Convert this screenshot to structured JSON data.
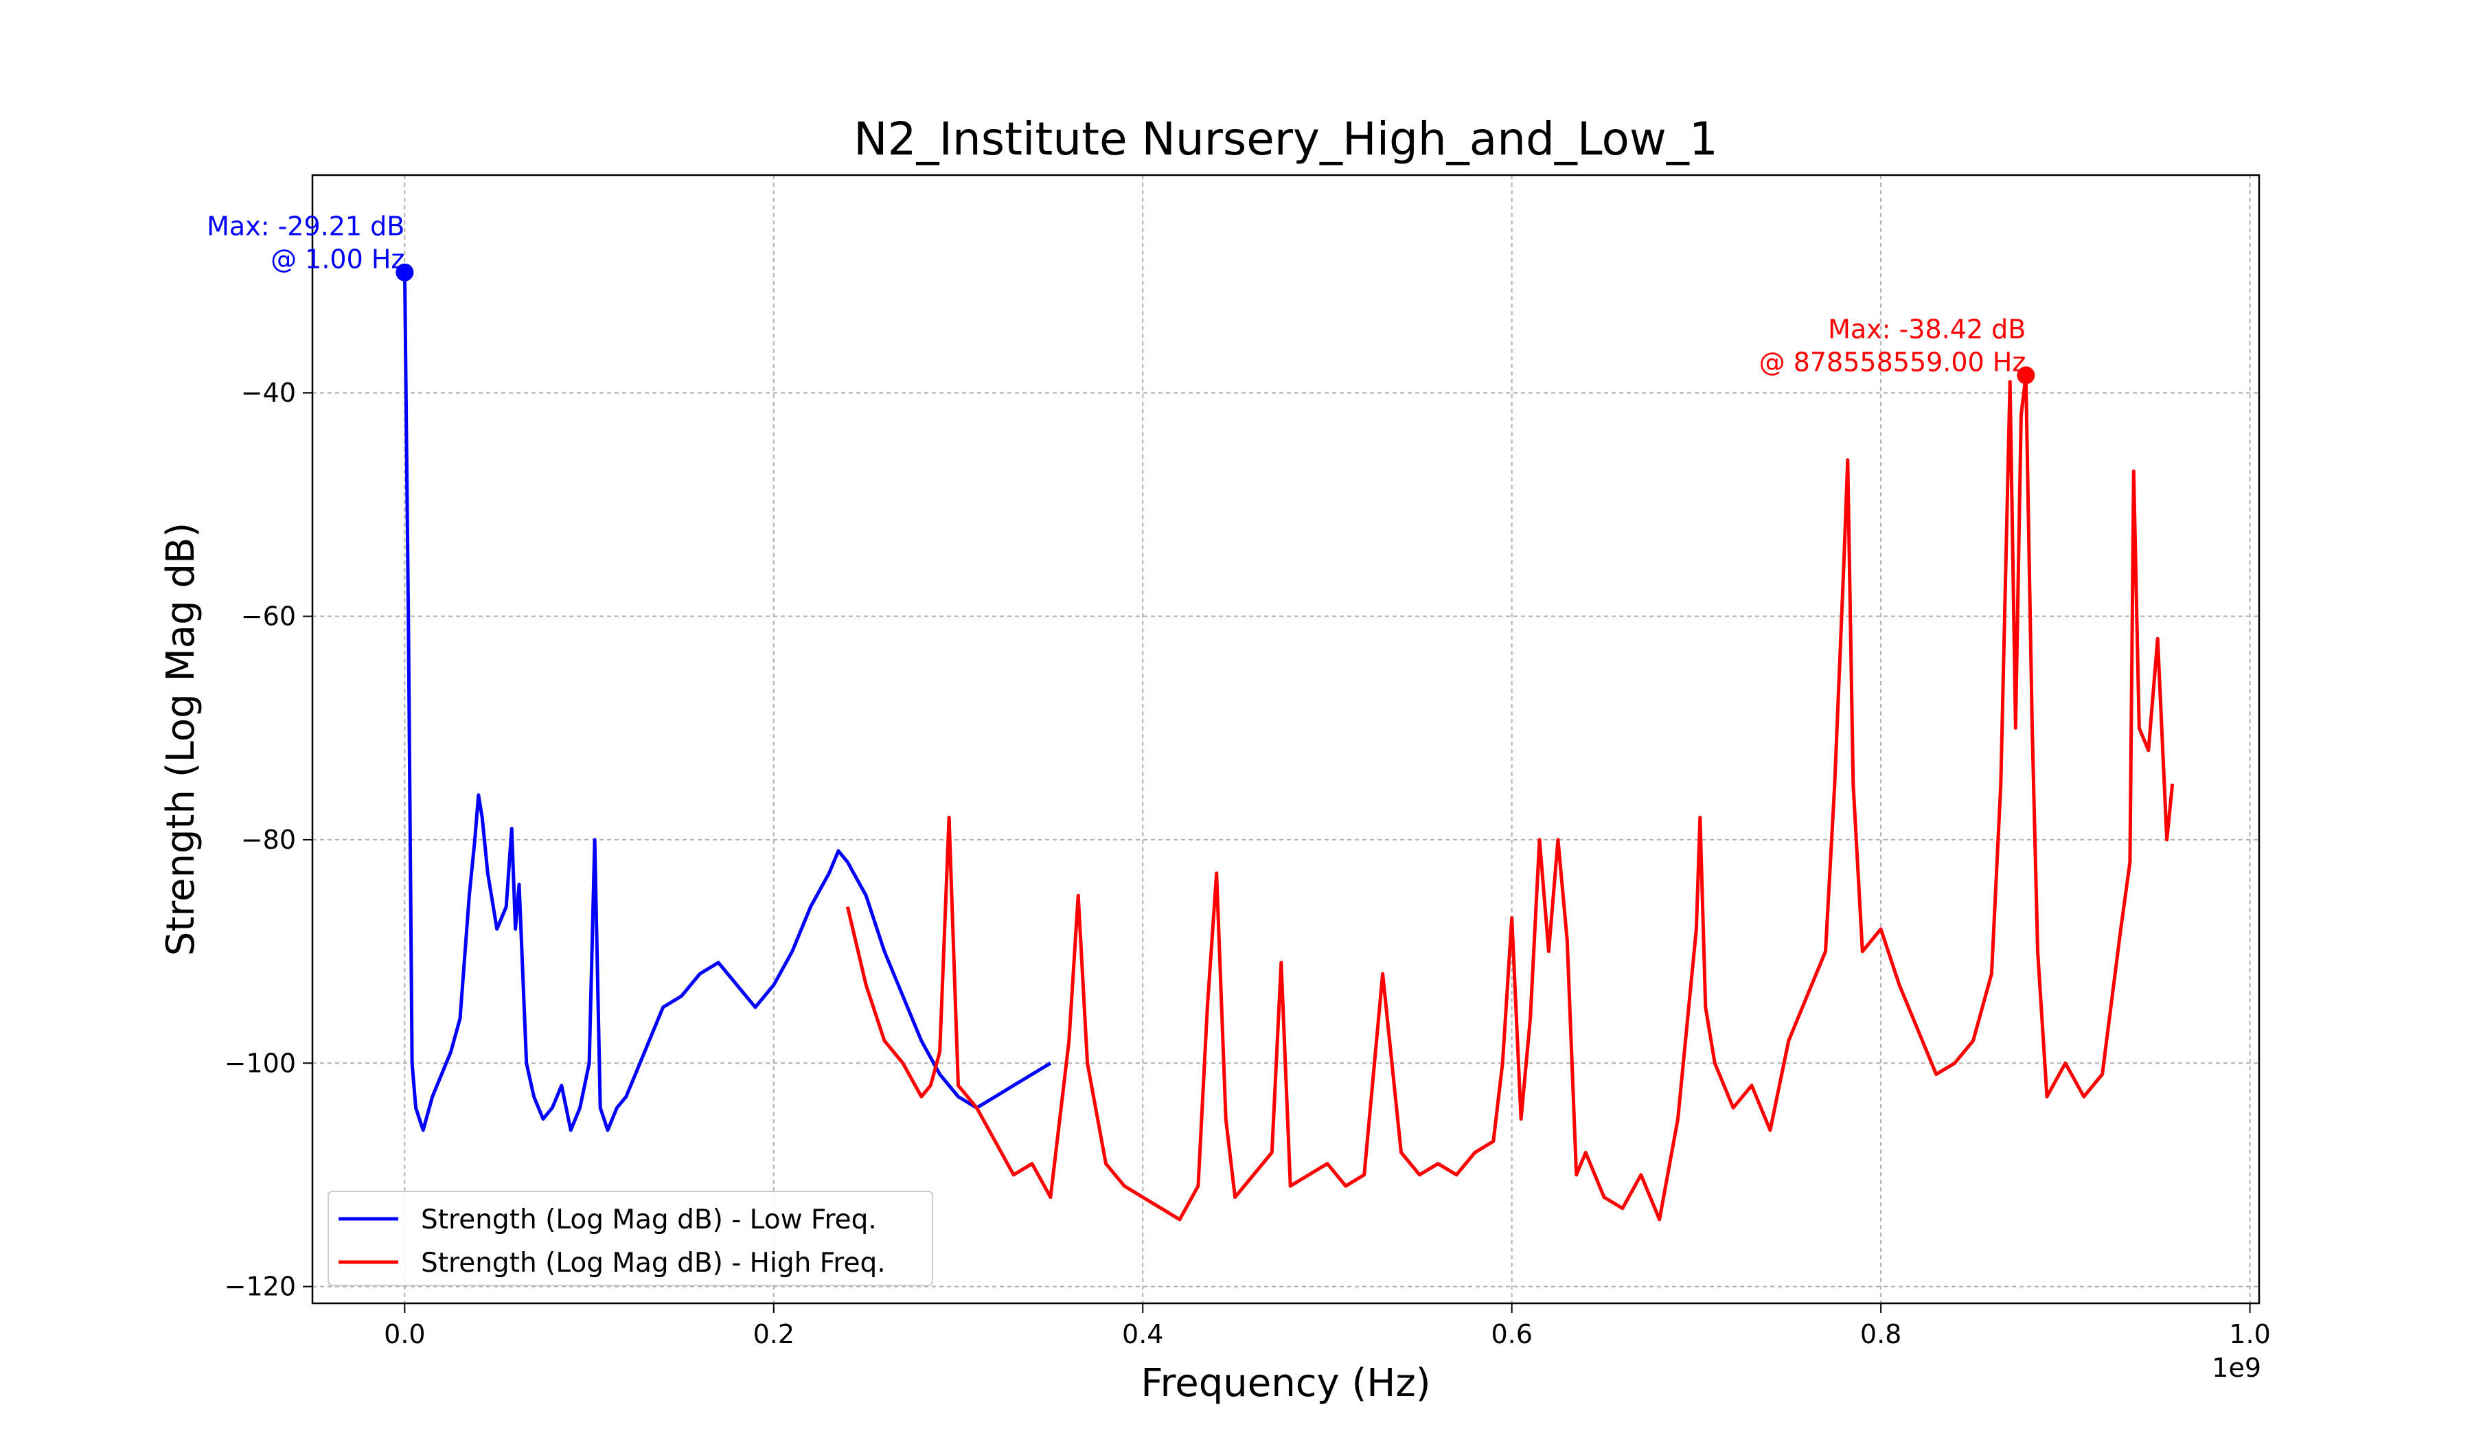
{
  "chart_data": {
    "type": "line",
    "title": "N2_Institute Nursery_High_and_Low_1",
    "xlabel": "Frequency (Hz)",
    "ylabel": "Strength (Log Mag dB)",
    "x_offset_label": "1e9",
    "xlim": [
      -0.05,
      1.005
    ],
    "ylim": [
      -121.5,
      -20.5
    ],
    "x_ticks": [
      0.0,
      0.2,
      0.4,
      0.6,
      0.8,
      1.0
    ],
    "x_tick_labels": [
      "0.0",
      "0.2",
      "0.4",
      "0.6",
      "0.8",
      "1.0"
    ],
    "y_ticks": [
      -40,
      -60,
      -80,
      -100,
      -120
    ],
    "y_tick_labels": [
      "−40",
      "−60",
      "−80",
      "−100",
      "−120"
    ],
    "grid": true,
    "legend_position": "lower-left",
    "series": [
      {
        "name": "Strength (Log Mag dB) - Low Freq.",
        "color": "#0000ff",
        "x": [
          0.0,
          0.002,
          0.004,
          0.006,
          0.01,
          0.015,
          0.02,
          0.025,
          0.03,
          0.035,
          0.038,
          0.04,
          0.042,
          0.045,
          0.05,
          0.055,
          0.058,
          0.06,
          0.062,
          0.066,
          0.07,
          0.075,
          0.08,
          0.085,
          0.09,
          0.095,
          0.1,
          0.103,
          0.106,
          0.11,
          0.115,
          0.12,
          0.125,
          0.13,
          0.135,
          0.14,
          0.15,
          0.16,
          0.17,
          0.18,
          0.19,
          0.2,
          0.21,
          0.22,
          0.23,
          0.235,
          0.24,
          0.25,
          0.26,
          0.27,
          0.28,
          0.29,
          0.3,
          0.31,
          0.32,
          0.33,
          0.34,
          0.35
        ],
        "y": [
          -29.21,
          -60,
          -100,
          -104,
          -106,
          -103,
          -101,
          -99,
          -96,
          -85,
          -80,
          -76,
          -78,
          -83,
          -88,
          -86,
          -79,
          -88,
          -84,
          -100,
          -103,
          -105,
          -104,
          -102,
          -106,
          -104,
          -100,
          -80,
          -104,
          -106,
          -104,
          -103,
          -101,
          -99,
          -97,
          -95,
          -94,
          -92,
          -91,
          -93,
          -95,
          -93,
          -90,
          -86,
          -83,
          -81,
          -82,
          -85,
          -90,
          -94,
          -98,
          -101,
          -103,
          -104,
          -103,
          -102,
          -101,
          -100
        ]
      },
      {
        "name": "Strength (Log Mag dB) - High Freq.",
        "color": "#ff0000",
        "x": [
          0.24,
          0.25,
          0.26,
          0.27,
          0.28,
          0.285,
          0.29,
          0.295,
          0.3,
          0.31,
          0.32,
          0.33,
          0.34,
          0.35,
          0.36,
          0.365,
          0.37,
          0.38,
          0.39,
          0.4,
          0.41,
          0.42,
          0.43,
          0.435,
          0.44,
          0.445,
          0.45,
          0.46,
          0.47,
          0.475,
          0.48,
          0.49,
          0.5,
          0.51,
          0.52,
          0.53,
          0.54,
          0.55,
          0.56,
          0.57,
          0.58,
          0.59,
          0.595,
          0.6,
          0.605,
          0.61,
          0.615,
          0.62,
          0.625,
          0.63,
          0.635,
          0.64,
          0.65,
          0.66,
          0.67,
          0.68,
          0.69,
          0.7,
          0.702,
          0.705,
          0.71,
          0.72,
          0.73,
          0.74,
          0.75,
          0.76,
          0.77,
          0.775,
          0.78,
          0.782,
          0.785,
          0.79,
          0.8,
          0.81,
          0.82,
          0.83,
          0.84,
          0.85,
          0.86,
          0.865,
          0.87,
          0.873,
          0.876,
          0.8786,
          0.882,
          0.885,
          0.89,
          0.9,
          0.91,
          0.92,
          0.93,
          0.935,
          0.937,
          0.94,
          0.945,
          0.95,
          0.955,
          0.958
        ],
        "y": [
          -86,
          -93,
          -98,
          -100,
          -103,
          -102,
          -99,
          -78,
          -102,
          -104,
          -107,
          -110,
          -109,
          -112,
          -98,
          -85,
          -100,
          -109,
          -111,
          -112,
          -113,
          -114,
          -111,
          -95,
          -83,
          -105,
          -112,
          -110,
          -108,
          -91,
          -111,
          -110,
          -109,
          -111,
          -110,
          -92,
          -108,
          -110,
          -109,
          -110,
          -108,
          -107,
          -100,
          -87,
          -105,
          -96,
          -80,
          -90,
          -80,
          -89,
          -110,
          -108,
          -112,
          -113,
          -110,
          -114,
          -105,
          -88,
          -78,
          -95,
          -100,
          -104,
          -102,
          -106,
          -98,
          -94,
          -90,
          -75,
          -55,
          -46,
          -75,
          -90,
          -88,
          -93,
          -97,
          -101,
          -100,
          -98,
          -92,
          -75,
          -39,
          -70,
          -42,
          -38.42,
          -70,
          -90,
          -103,
          -100,
          -103,
          -101,
          -88,
          -82,
          -47,
          -70,
          -72,
          -62,
          -80,
          -75
        ]
      }
    ],
    "annotations": [
      {
        "line1": "Max: -29.21 dB",
        "line2": "@ 1.00 Hz",
        "x": 0.0,
        "y": -29.21,
        "color": "#0000ff"
      },
      {
        "line1": "Max: -38.42 dB",
        "line2": "@ 878558559.00 Hz",
        "x": 0.8786,
        "y": -38.42,
        "color": "#ff0000"
      }
    ]
  }
}
